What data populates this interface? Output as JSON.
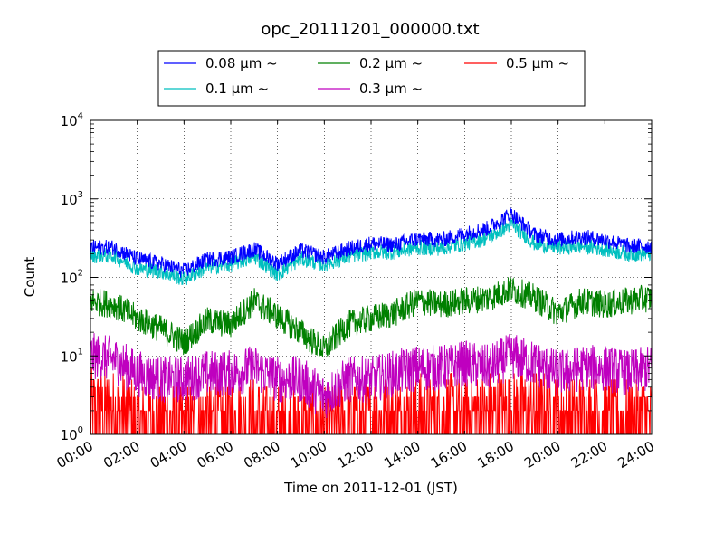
{
  "chart_data": {
    "type": "line",
    "title": "opc_20111201_000000.txt",
    "xlabel": "Time on 2011-12-01 (JST)",
    "ylabel": "Count",
    "y_scale": "log",
    "ylim": [
      1,
      10000
    ],
    "y_ticks": [
      {
        "base": "10",
        "exp": "0"
      },
      {
        "base": "10",
        "exp": "1"
      },
      {
        "base": "10",
        "exp": "2"
      },
      {
        "base": "10",
        "exp": "3"
      },
      {
        "base": "10",
        "exp": "4"
      }
    ],
    "x_hours_range": [
      0,
      24
    ],
    "x_ticks": [
      "00:00",
      "02:00",
      "04:00",
      "06:00",
      "08:00",
      "10:00",
      "12:00",
      "14:00",
      "16:00",
      "18:00",
      "20:00",
      "22:00",
      "24:00"
    ],
    "grid": true,
    "legend_placement": "top-center, above plot",
    "x_hours": [
      0,
      1,
      2,
      3,
      4,
      5,
      6,
      7,
      8,
      9,
      10,
      11,
      12,
      13,
      14,
      15,
      16,
      17,
      18,
      19,
      20,
      21,
      22,
      23,
      24
    ],
    "series": [
      {
        "name": "0.08 μm ~",
        "color": "#0000ff",
        "values": [
          240,
          240,
          170,
          150,
          120,
          170,
          180,
          230,
          150,
          220,
          180,
          230,
          270,
          260,
          310,
          300,
          360,
          420,
          650,
          350,
          300,
          330,
          300,
          250,
          250
        ]
      },
      {
        "name": "0.1 μm ~",
        "color": "#00bfbf",
        "values": [
          190,
          190,
          130,
          120,
          95,
          135,
          145,
          185,
          110,
          175,
          145,
          185,
          210,
          210,
          240,
          235,
          270,
          320,
          480,
          270,
          240,
          250,
          230,
          200,
          200
        ]
      },
      {
        "name": "0.2 μm ~",
        "color": "#008000",
        "values": [
          50,
          45,
          30,
          22,
          15,
          28,
          25,
          50,
          32,
          20,
          12,
          25,
          30,
          35,
          50,
          45,
          50,
          55,
          70,
          55,
          35,
          50,
          45,
          50,
          55
        ]
      },
      {
        "name": "0.3 μm ~",
        "color": "#bf00bf",
        "values": [
          10,
          9,
          6,
          5,
          5,
          6,
          6,
          7,
          5,
          5,
          3,
          5,
          5,
          6,
          7,
          7,
          8,
          7,
          10,
          8,
          6,
          7,
          7,
          6,
          7
        ]
      },
      {
        "name": "0.5 μm ~",
        "color": "#ff0000",
        "values": [
          2,
          2,
          1.5,
          1.5,
          1.2,
          1.5,
          1.5,
          1.5,
          1.2,
          1.2,
          1.1,
          1.3,
          1.5,
          1.5,
          1.7,
          1.7,
          1.8,
          1.8,
          2,
          1.8,
          1.6,
          1.7,
          1.6,
          1.5,
          1.6
        ]
      }
    ],
    "noise_log10": [
      0.1,
      0.1,
      0.18,
      0.3,
      0.55
    ]
  }
}
